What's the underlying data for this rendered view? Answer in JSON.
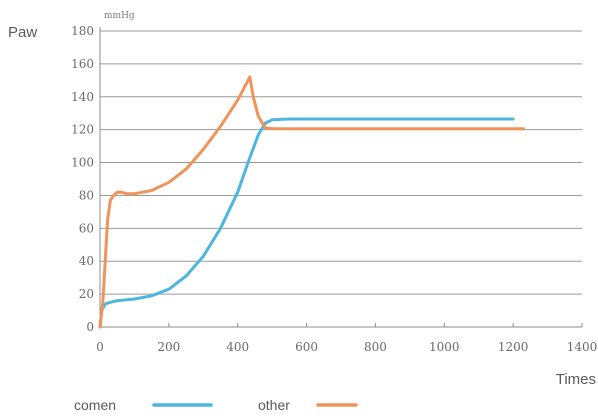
{
  "chart_data": {
    "type": "line",
    "ylabel": "Paw",
    "yunit": "mmHg",
    "xlabel": "Times",
    "xlim": [
      0,
      1400
    ],
    "ylim": [
      0,
      180
    ],
    "xticks": [
      0,
      200,
      400,
      600,
      800,
      1000,
      1200,
      1400
    ],
    "yticks": [
      0,
      20,
      40,
      60,
      80,
      100,
      120,
      140,
      160,
      180
    ],
    "grid": "horizontal",
    "legend_position": "bottom",
    "series": [
      {
        "name": "comen",
        "color": "#4db6dd",
        "x": [
          0,
          5,
          15,
          30,
          50,
          100,
          150,
          200,
          250,
          300,
          350,
          400,
          430,
          460,
          480,
          500,
          550,
          600,
          800,
          1000,
          1200
        ],
        "y": [
          0,
          10,
          14,
          15,
          16,
          17,
          19,
          23,
          31,
          43,
          60,
          82,
          100,
          117,
          124,
          126,
          126.5,
          126.5,
          126.5,
          126.5,
          126.5
        ]
      },
      {
        "name": "other",
        "color": "#f0935a",
        "x": [
          0,
          8,
          15,
          22,
          30,
          40,
          50,
          60,
          80,
          100,
          150,
          200,
          250,
          300,
          350,
          400,
          420,
          435,
          445,
          460,
          480,
          500,
          600,
          800,
          1000,
          1200,
          1230
        ],
        "y": [
          0,
          15,
          40,
          65,
          77,
          80,
          82,
          82,
          81,
          81,
          83,
          88,
          96,
          108,
          122,
          138,
          146,
          152,
          140,
          128,
          121,
          120.5,
          120.5,
          120.5,
          120.5,
          120.5,
          120.5
        ]
      }
    ]
  }
}
